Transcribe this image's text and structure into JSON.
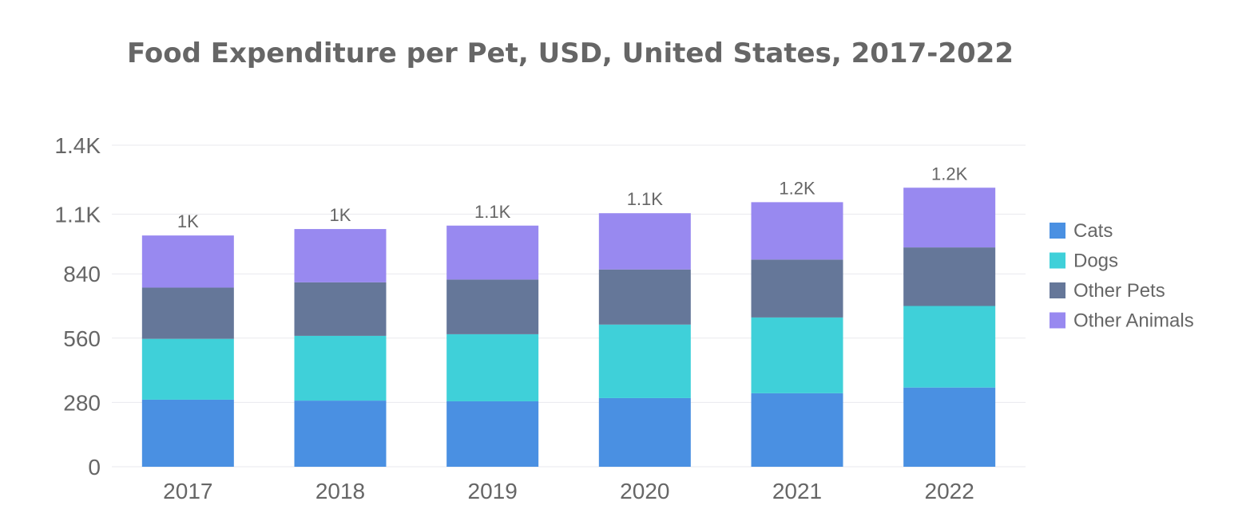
{
  "chart_data": {
    "type": "bar",
    "stacked": true,
    "title": "Food Expenditure per Pet, USD, United States, 2017-2022",
    "xlabel": "",
    "ylabel": "",
    "categories": [
      "2017",
      "2018",
      "2019",
      "2020",
      "2021",
      "2022"
    ],
    "ylim": [
      0,
      1400
    ],
    "yticks": [
      0,
      280,
      560,
      840,
      1100,
      1400
    ],
    "ytick_labels": [
      "0",
      "280",
      "560",
      "840",
      "1.1K",
      "1.4K"
    ],
    "grid": true,
    "legend_position": "right",
    "series": [
      {
        "name": "Cats",
        "color": "#4a90e2",
        "values": [
          292,
          288,
          285,
          299,
          320,
          345
        ]
      },
      {
        "name": "Dogs",
        "color": "#3fd0d9",
        "values": [
          265,
          282,
          292,
          320,
          330,
          355
        ]
      },
      {
        "name": "Other Pets",
        "color": "#657799",
        "values": [
          223,
          233,
          238,
          240,
          252,
          255
        ]
      },
      {
        "name": "Other Animals",
        "color": "#9889f0",
        "values": [
          227,
          232,
          235,
          245,
          250,
          260
        ]
      }
    ],
    "total_labels": [
      "1K",
      "1K",
      "1.1K",
      "1.1K",
      "1.2K",
      "1.2K"
    ]
  }
}
